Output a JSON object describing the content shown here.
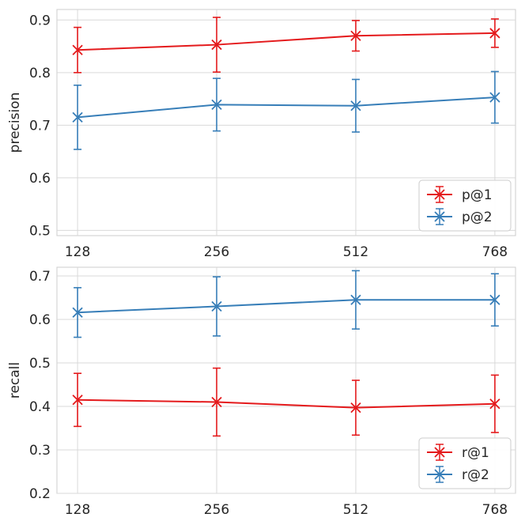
{
  "chart_data": [
    {
      "type": "line",
      "ylabel": "precision",
      "xlabel": "",
      "categories": [
        "128",
        "256",
        "512",
        "768"
      ],
      "ylim": [
        0.49,
        0.92
      ],
      "yticks": [
        0.5,
        0.6,
        0.7,
        0.8,
        0.9
      ],
      "legend_position": "bottom-right",
      "grid": true,
      "series": [
        {
          "name": "p@1",
          "color": "#e41a1c",
          "values": [
            0.843,
            0.853,
            0.87,
            0.875
          ],
          "err": [
            0.043,
            0.052,
            0.029,
            0.027
          ]
        },
        {
          "name": "p@2",
          "color": "#377eb8",
          "values": [
            0.715,
            0.739,
            0.737,
            0.753
          ],
          "err": [
            0.061,
            0.05,
            0.05,
            0.049
          ]
        }
      ]
    },
    {
      "type": "line",
      "ylabel": "recall",
      "xlabel": "",
      "categories": [
        "128",
        "256",
        "512",
        "768"
      ],
      "ylim": [
        0.2,
        0.72
      ],
      "yticks": [
        0.2,
        0.3,
        0.4,
        0.5,
        0.6,
        0.7
      ],
      "legend_position": "bottom-right",
      "grid": true,
      "series": [
        {
          "name": "r@1",
          "color": "#e41a1c",
          "values": [
            0.415,
            0.41,
            0.397,
            0.406
          ],
          "err": [
            0.061,
            0.078,
            0.063,
            0.066
          ]
        },
        {
          "name": "r@2",
          "color": "#377eb8",
          "values": [
            0.616,
            0.63,
            0.645,
            0.645
          ],
          "err": [
            0.057,
            0.068,
            0.067,
            0.06
          ]
        }
      ]
    }
  ]
}
